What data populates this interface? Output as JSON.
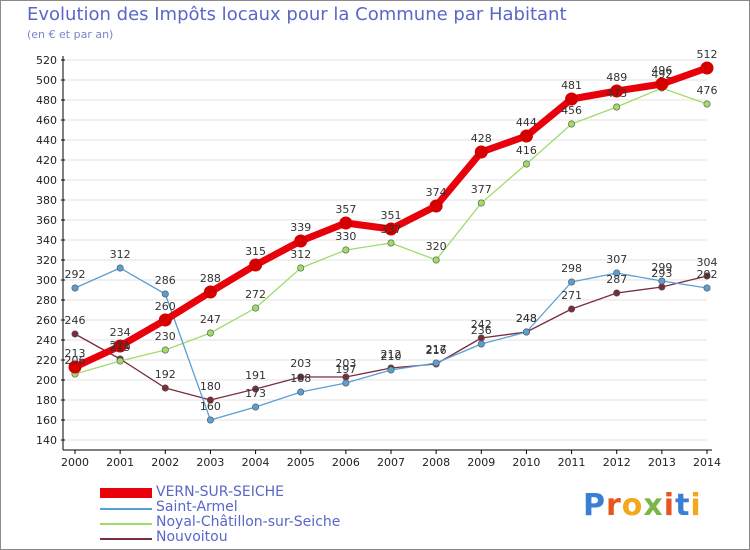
{
  "title": "Evolution des Impôts locaux pour la Commune par Habitant",
  "subtitle": "(en € et par an)",
  "logo_text": "Proxiti",
  "colors": {
    "title": "#5a67c8",
    "grid": "#e2e2e2",
    "axis": "#000000",
    "vern": "#e8000b",
    "vern_marker": "#d40000",
    "saint_armel": "#5a9fd4",
    "noyal": "#9fdc6a",
    "nouvoitou": "#7a2d3a"
  },
  "chart_data": {
    "type": "line",
    "categories": [
      "2000",
      "2001",
      "2002",
      "2003",
      "2004",
      "2005",
      "2006",
      "2007",
      "2008",
      "2009",
      "2010",
      "2011",
      "2012",
      "2013",
      "2014"
    ],
    "ylim": [
      140,
      520
    ],
    "yticks": [
      140,
      160,
      180,
      200,
      220,
      240,
      260,
      280,
      300,
      320,
      340,
      360,
      380,
      400,
      420,
      440,
      460,
      480,
      500,
      520
    ],
    "xlabel": "",
    "ylabel": "",
    "grid": true,
    "legend_position": "bottom-left",
    "series": [
      {
        "name": "VERN-SUR-SEICHE",
        "key": "vern",
        "values": [
          213,
          234,
          260,
          288,
          315,
          339,
          357,
          351,
          374,
          428,
          444,
          481,
          489,
          496,
          512
        ]
      },
      {
        "name": "Saint-Armel",
        "key": "saint_armel",
        "values": [
          292,
          312,
          286,
          160,
          173,
          188,
          197,
          210,
          217,
          236,
          248,
          298,
          307,
          299,
          292
        ]
      },
      {
        "name": "Noyal-Châtillon-sur-Seiche",
        "key": "noyal",
        "values": [
          206,
          219,
          230,
          247,
          272,
          312,
          330,
          337,
          320,
          377,
          416,
          456,
          473,
          492,
          476
        ]
      },
      {
        "name": "Nouvoitou",
        "key": "nouvoitou",
        "values": [
          246,
          221,
          192,
          180,
          191,
          203,
          203,
          212,
          216,
          242,
          248,
          271,
          287,
          293,
          304
        ]
      }
    ]
  }
}
